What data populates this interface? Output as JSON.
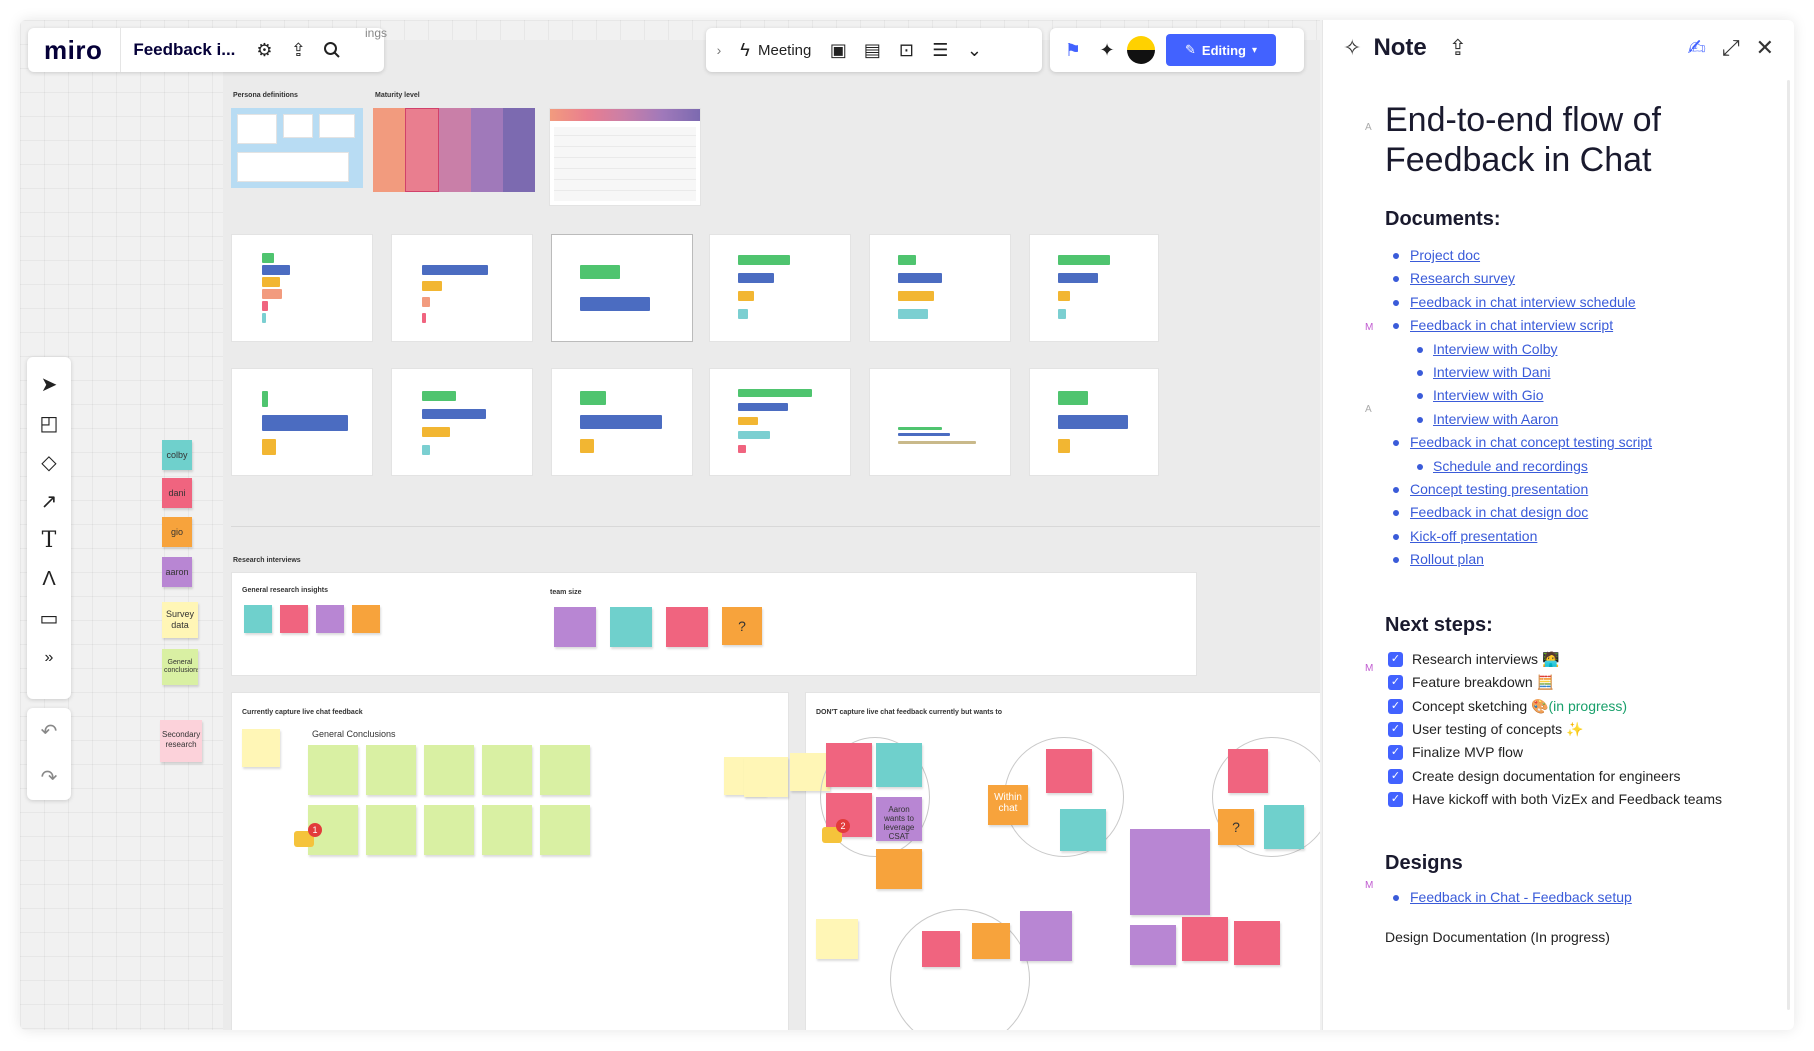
{
  "app": {
    "logo": "miro",
    "board_name": "Feedback i...",
    "canvas_title_fragment": "ings"
  },
  "top_toolbar": {
    "meeting_label": "Meeting",
    "editing_label": "Editing"
  },
  "board": {
    "persona_definitions": "Persona definitions",
    "maturity_level": "Maturity level",
    "research_interviews": "Research interviews",
    "general_research_insights": "General research insights",
    "team_size": "team size",
    "currently_capture": "Currently capture live chat feedback",
    "general_conclusions": "General Conclusions",
    "dont_capture": "DON'T capture live chat feedback currently but wants to",
    "within_chat": "Within chat",
    "aaron_wants": "Aaron wants to leverage CSAT",
    "question_mark": "?",
    "comment_count_1": "1",
    "comment_count_2": "2"
  },
  "stickies": {
    "colby": "colby",
    "dani": "dani",
    "gio": "gio",
    "aaron": "aaron",
    "survey_data": "Survey data",
    "general_conclusions": "General conclusions",
    "secondary_research": "Secondary research"
  },
  "panel": {
    "title": "Note",
    "heading": "End-to-end flow of Feedback in Chat",
    "documents_heading": "Documents:",
    "documents": [
      {
        "label": "Project doc",
        "sub": false
      },
      {
        "label": "Research survey",
        "sub": false
      },
      {
        "label": "Feedback in chat interview schedule",
        "sub": false
      },
      {
        "label": "Feedback in chat interview script",
        "sub": false
      },
      {
        "label": "Interview with Colby",
        "sub": true
      },
      {
        "label": "Interview with Dani",
        "sub": true
      },
      {
        "label": "Interview with Gio",
        "sub": true
      },
      {
        "label": "Interview with Aaron",
        "sub": true
      },
      {
        "label": "Feedback in chat concept testing script",
        "sub": false
      },
      {
        "label": "Schedule and recordings",
        "sub": true
      },
      {
        "label": "Concept testing presentation",
        "sub": false
      },
      {
        "label": "Feedback in chat design doc",
        "sub": false
      },
      {
        "label": "Kick-off presentation",
        "sub": false
      },
      {
        "label": "Rollout plan",
        "sub": false
      }
    ],
    "next_steps_heading": "Next steps:",
    "next_steps": [
      {
        "label": "Research interviews",
        "emoji": "🧑‍💻",
        "extra": ""
      },
      {
        "label": "Feature breakdown",
        "emoji": "🧮",
        "extra": ""
      },
      {
        "label": "Concept sketching",
        "emoji": "🎨",
        "extra": "(in progress)"
      },
      {
        "label": "User testing of concepts",
        "emoji": "✨",
        "extra": ""
      },
      {
        "label": "Finalize MVP flow",
        "emoji": "",
        "extra": ""
      },
      {
        "label": "Create design documentation for engineers",
        "emoji": "",
        "extra": ""
      },
      {
        "label": "Have kickoff with both VizEx and Feedback teams",
        "emoji": "",
        "extra": ""
      }
    ],
    "designs_heading": "Designs",
    "designs": [
      {
        "label": "Feedback in Chat - Feedback setup"
      }
    ],
    "design_doc_status": "Design Documentation (In progress)",
    "markers": {
      "a": "A",
      "m": "M"
    }
  },
  "colors": {
    "accent": "#4262ff",
    "link": "#3a5bd9",
    "bar_green": "#4fc46f",
    "bar_blue": "#4b6cc1",
    "bar_yellow": "#f2b632",
    "bar_teal": "#7bcfd1",
    "sticky_teal": "#6fd0cc",
    "sticky_pink": "#f0647f",
    "sticky_orange": "#f7a33c",
    "sticky_purple": "#b886d3",
    "sticky_yellow": "#fff6b6",
    "sticky_green": "#d9f0a3",
    "sticky_light_pink": "#fcd2da"
  },
  "icons": [
    "settings-icon",
    "share-icon",
    "search-icon",
    "chevron-right-icon",
    "lightning-icon",
    "frame-icon",
    "calendar-icon",
    "presentation-icon",
    "notes-icon",
    "double-chevron-icon",
    "reaction-icon",
    "party-icon",
    "avatar",
    "pencil-icon",
    "pointer-icon",
    "sticky-note-icon",
    "shapes-icon",
    "arrow-icon",
    "text-icon",
    "pen-icon",
    "comment-icon",
    "more-icon",
    "undo-icon",
    "redo-icon",
    "pin-icon",
    "upload-icon",
    "collaborate-icon",
    "expand-icon",
    "close-icon"
  ]
}
